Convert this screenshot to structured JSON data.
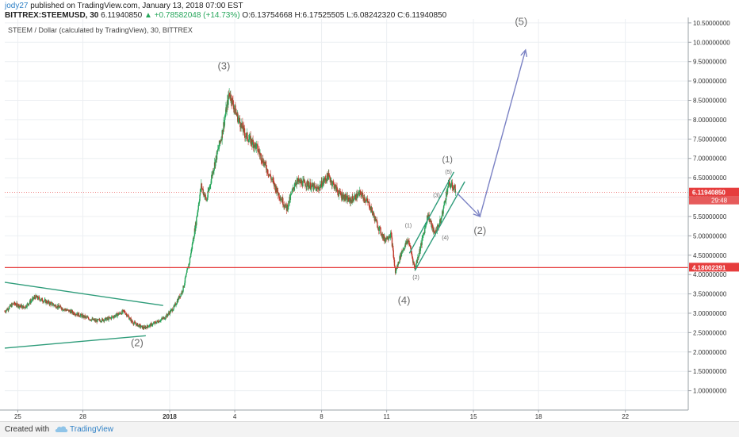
{
  "header": {
    "user": "jody27",
    "published": " published on TradingView.com, January 13, 2018 07:00 EST",
    "symbol": "BITTREX:STEEMUSD, 30",
    "last": "6.11940850",
    "change_arrow": "▲",
    "change": "+0.78582048 (+14.73%)",
    "ohlc": "O:6.13754668 H:6.17525505 L:6.08242320 C:6.11940850"
  },
  "footer": {
    "created": "Created with",
    "brand": "TradingView"
  },
  "chart_data": {
    "type": "candlestick",
    "title": "STEEM / Dollar (calculated by TradingView), 30, BITTREX",
    "ylim": [
      0.5,
      10.6
    ],
    "y_ticks": [
      "1.00000000",
      "1.50000000",
      "2.00000000",
      "2.50000000",
      "3.00000000",
      "3.50000000",
      "4.00000000",
      "4.50000000",
      "5.00000000",
      "5.50000000",
      "6.00000000",
      "6.50000000",
      "7.00000000",
      "7.50000000",
      "8.00000000",
      "8.50000000",
      "9.00000000",
      "9.50000000",
      "10.00000000",
      "10.50000000"
    ],
    "x_ticks": [
      {
        "label": "25",
        "day": 25
      },
      {
        "label": "28",
        "day": 28
      },
      {
        "label": "2018",
        "day": 32
      },
      {
        "label": "4",
        "day": 35
      },
      {
        "label": "8",
        "day": 39
      },
      {
        "label": "11",
        "day": 42
      },
      {
        "label": "15",
        "day": 46
      },
      {
        "label": "18",
        "day": 49
      },
      {
        "label": "22",
        "day": 53
      }
    ],
    "xlim_day": [
      24.4,
      55.9
    ],
    "price_path": [
      [
        24.4,
        3.05
      ],
      [
        24.8,
        3.25
      ],
      [
        25.3,
        3.15
      ],
      [
        25.8,
        3.42
      ],
      [
        26.3,
        3.3
      ],
      [
        26.8,
        3.18
      ],
      [
        27.4,
        3.05
      ],
      [
        28.0,
        2.92
      ],
      [
        28.6,
        2.8
      ],
      [
        29.2,
        2.86
      ],
      [
        29.9,
        3.05
      ],
      [
        30.3,
        2.76
      ],
      [
        30.8,
        2.62
      ],
      [
        31.3,
        2.74
      ],
      [
        31.8,
        2.9
      ],
      [
        32.2,
        3.15
      ],
      [
        32.6,
        3.6
      ],
      [
        32.9,
        4.3
      ],
      [
        33.2,
        5.3
      ],
      [
        33.45,
        6.3
      ],
      [
        33.7,
        5.9
      ],
      [
        34.0,
        6.7
      ],
      [
        34.4,
        7.6
      ],
      [
        34.75,
        8.7
      ],
      [
        35.1,
        8.1
      ],
      [
        35.5,
        7.6
      ],
      [
        36.0,
        7.3
      ],
      [
        36.5,
        6.7
      ],
      [
        37.0,
        6.1
      ],
      [
        37.4,
        5.7
      ],
      [
        37.8,
        6.4
      ],
      [
        38.3,
        6.35
      ],
      [
        38.8,
        6.2
      ],
      [
        39.3,
        6.55
      ],
      [
        39.8,
        6.1
      ],
      [
        40.3,
        5.9
      ],
      [
        40.8,
        6.1
      ],
      [
        41.2,
        5.8
      ],
      [
        41.6,
        5.25
      ],
      [
        41.9,
        4.9
      ],
      [
        42.2,
        5.05
      ],
      [
        42.4,
        4.05
      ],
      [
        42.7,
        4.6
      ],
      [
        43.0,
        4.9
      ],
      [
        43.3,
        4.15
      ],
      [
        43.6,
        4.8
      ],
      [
        43.9,
        5.55
      ],
      [
        44.2,
        5.05
      ],
      [
        44.5,
        5.4
      ],
      [
        44.85,
        6.35
      ],
      [
        45.2,
        6.2
      ]
    ],
    "support_level": 4.18002391,
    "support_label": "4.18002391",
    "last_price": 6.1194085,
    "last_label": "6.11940850",
    "countdown_label": "29:48",
    "triangle_lines": [
      [
        [
          24.4,
          3.8
        ],
        [
          31.7,
          3.2
        ]
      ],
      [
        [
          24.4,
          2.1
        ],
        [
          30.9,
          2.42
        ]
      ]
    ],
    "channel_lines": [
      [
        [
          43.05,
          4.55
        ],
        [
          45.1,
          6.65
        ]
      ],
      [
        [
          43.3,
          4.1
        ],
        [
          45.6,
          6.4
        ]
      ]
    ],
    "projection": [
      [
        45.25,
        6.1
      ],
      [
        46.3,
        5.5
      ],
      [
        48.4,
        9.8
      ]
    ],
    "wave_labels": [
      {
        "text": "(3)",
        "day": 34.5,
        "price": 9.3,
        "size": 13
      },
      {
        "text": "(2)",
        "day": 30.5,
        "price": 2.15,
        "size": 13
      },
      {
        "text": "(4)",
        "day": 42.8,
        "price": 3.25,
        "size": 13
      },
      {
        "text": "(5)",
        "day": 48.2,
        "price": 10.45,
        "size": 13
      },
      {
        "text": "(2)",
        "day": 46.3,
        "price": 5.05,
        "size": 13
      },
      {
        "text": "(1)",
        "day": 44.8,
        "price": 6.9,
        "size": 11
      },
      {
        "text": "(1)",
        "day": 43.0,
        "price": 5.22,
        "size": 7
      },
      {
        "text": "(2)",
        "day": 43.35,
        "price": 3.88,
        "size": 7
      },
      {
        "text": "(3)",
        "day": 44.3,
        "price": 6.0,
        "size": 7
      },
      {
        "text": "(4)",
        "day": 44.7,
        "price": 4.9,
        "size": 7
      },
      {
        "text": "(5)",
        "day": 44.85,
        "price": 6.6,
        "size": 7
      }
    ],
    "colors": {
      "up": "#26a65b",
      "down": "#c0392b",
      "support": "#e63d3d",
      "pattern": "#2e9c7a",
      "projection": "#7b82c4",
      "label": "#6a6a6a",
      "grid": "#eceff2",
      "axis_text": "#333333"
    }
  }
}
